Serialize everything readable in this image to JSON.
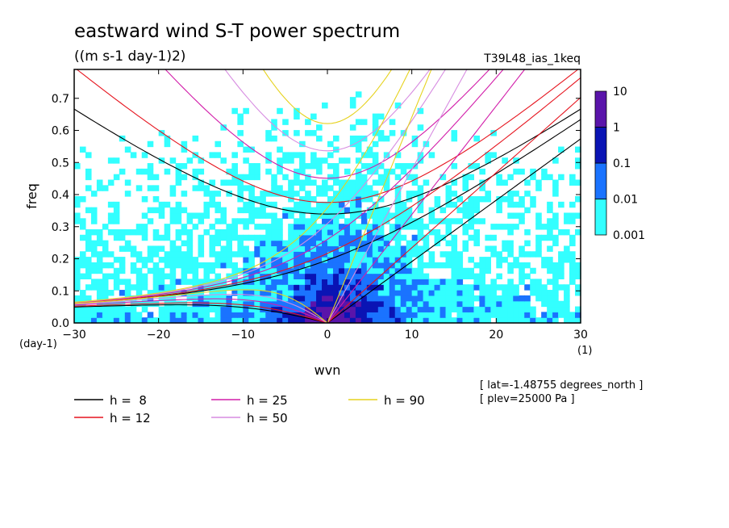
{
  "chart_data": {
    "type": "heatmap",
    "title": "eastward wind S-T power spectrum",
    "subtitle": "((m s-1 day-1)2)",
    "run_label": "T39L48_ias_1keq",
    "xlabel": "wvn",
    "ylabel": "freq",
    "x_unit": "(1)",
    "y_unit": "(day-1)",
    "xlim": [
      -30,
      30
    ],
    "ylim": [
      0,
      0.79
    ],
    "x_ticks": [
      -30,
      -20,
      -10,
      0,
      10,
      20,
      30
    ],
    "y_ticks": [
      0.0,
      0.1,
      0.2,
      0.3,
      0.4,
      0.5,
      0.6,
      0.7
    ],
    "colorbar": {
      "levels": [
        0.001,
        0.01,
        0.1,
        1,
        10
      ],
      "level_labels": [
        "0.001",
        "0.01",
        "0.1",
        "1",
        "10"
      ],
      "colors": [
        "#33ffff",
        "#1a73ff",
        "#0a14b4",
        "#5a14aa"
      ],
      "below_color": "#ffffff"
    },
    "series": [
      {
        "name": "h =  8",
        "color": "#000000",
        "h": 8
      },
      {
        "name": "h = 12",
        "color": "#e6141e",
        "h": 12
      },
      {
        "name": "h = 25",
        "color": "#d21eaa",
        "h": 25
      },
      {
        "name": "h = 50",
        "color": "#d78ce1",
        "h": 50
      },
      {
        "name": "h = 90",
        "color": "#e6d21e",
        "h": 90
      }
    ],
    "info": [
      "[ lat=-1.48755 degrees_north ]",
      "[ plev=25000 Pa ]"
    ]
  }
}
